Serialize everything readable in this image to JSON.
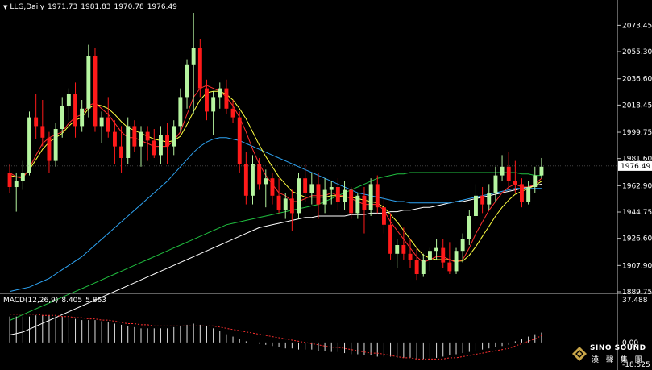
{
  "header": {
    "symbol": "LLG,Daily",
    "open": "1971.73",
    "high": "1981.83",
    "low": "1970.78",
    "close": "1976.49"
  },
  "macd_header": {
    "label": "MACD(12,26,9)",
    "main": "8.405",
    "signal": "5.863"
  },
  "colors": {
    "background": "#000000",
    "up_candle": "#b6f5a0",
    "down_candle": "#ff1a1a",
    "ma_fast": "#ff3030",
    "ma_mid": "#ffff40",
    "ma_blue": "#2ea3f2",
    "ma_green": "#20c040",
    "ma_white": "#ffffff",
    "grid": "#c0c0c0"
  },
  "logo": {
    "text": "SINO SOUND",
    "cn": "漢 聲 集 團"
  },
  "chart_data": [
    {
      "type": "candlestick",
      "title": "LLG,Daily",
      "y_ticks": [
        "2073.45",
        "2055.30",
        "2036.60",
        "2018.45",
        "1999.75",
        "1981.60",
        "1962.90",
        "1944.75",
        "1926.60",
        "1907.90",
        "1889.75"
      ],
      "ylim": [
        1889.75,
        2082
      ],
      "current_price": "1976.49",
      "candles": [
        [
          1972,
          1978,
          1958,
          1962
        ],
        [
          1962,
          1972,
          1945,
          1966
        ],
        [
          1966,
          1980,
          1960,
          1972
        ],
        [
          1972,
          2014,
          1970,
          2010
        ],
        [
          2010,
          2026,
          1995,
          2004
        ],
        [
          2004,
          2022,
          1990,
          1996
        ],
        [
          1996,
          2000,
          1972,
          1980
        ],
        [
          1980,
          2006,
          1976,
          2002
        ],
        [
          2002,
          2024,
          1996,
          2018
        ],
        [
          2018,
          2030,
          2008,
          2026
        ],
        [
          2026,
          2034,
          1996,
          2004
        ],
        [
          2004,
          2022,
          2000,
          2016
        ],
        [
          2016,
          2060,
          2010,
          2052
        ],
        [
          2052,
          2058,
          2000,
          2004
        ],
        [
          2004,
          2014,
          1992,
          2010
        ],
        [
          2010,
          2024,
          1996,
          2000
        ],
        [
          2000,
          2008,
          1978,
          1990
        ],
        [
          1990,
          2004,
          1972,
          1982
        ],
        [
          1982,
          2010,
          1978,
          2004
        ],
        [
          2004,
          2008,
          1986,
          1990
        ],
        [
          1990,
          2004,
          1976,
          2000
        ],
        [
          2000,
          2004,
          1980,
          1994
        ],
        [
          1994,
          2002,
          1982,
          1984
        ],
        [
          1984,
          2004,
          1978,
          1998
        ],
        [
          1998,
          2006,
          1978,
          1990
        ],
        [
          1990,
          2008,
          1984,
          2004
        ],
        [
          2004,
          2030,
          2000,
          2024
        ],
        [
          2024,
          2050,
          2016,
          2046
        ],
        [
          2046,
          2082,
          2012,
          2058
        ],
        [
          2058,
          2064,
          2024,
          2030
        ],
        [
          2030,
          2036,
          2008,
          2014
        ],
        [
          2014,
          2028,
          1998,
          2024
        ],
        [
          2024,
          2034,
          2016,
          2030
        ],
        [
          2030,
          2036,
          2012,
          2016
        ],
        [
          2016,
          2022,
          2006,
          2010
        ],
        [
          2010,
          2014,
          1972,
          1978
        ],
        [
          1978,
          1986,
          1950,
          1956
        ],
        [
          1956,
          1984,
          1950,
          1978
        ],
        [
          1978,
          1982,
          1960,
          1964
        ],
        [
          1964,
          1974,
          1948,
          1968
        ],
        [
          1968,
          1972,
          1950,
          1956
        ],
        [
          1956,
          1968,
          1944,
          1946
        ],
        [
          1946,
          1958,
          1940,
          1954
        ],
        [
          1954,
          1960,
          1932,
          1944
        ],
        [
          1944,
          1972,
          1940,
          1968
        ],
        [
          1968,
          1978,
          1952,
          1958
        ],
        [
          1958,
          1972,
          1950,
          1964
        ],
        [
          1964,
          1972,
          1940,
          1950
        ],
        [
          1950,
          1968,
          1944,
          1960
        ],
        [
          1960,
          1966,
          1950,
          1962
        ],
        [
          1962,
          1968,
          1946,
          1952
        ],
        [
          1952,
          1966,
          1946,
          1960
        ],
        [
          1960,
          1962,
          1940,
          1944
        ],
        [
          1944,
          1958,
          1940,
          1956
        ],
        [
          1956,
          1962,
          1930,
          1946
        ],
        [
          1946,
          1968,
          1942,
          1964
        ],
        [
          1964,
          1970,
          1944,
          1948
        ],
        [
          1948,
          1956,
          1930,
          1936
        ],
        [
          1936,
          1944,
          1912,
          1916
        ],
        [
          1916,
          1926,
          1906,
          1922
        ],
        [
          1922,
          1934,
          1912,
          1916
        ],
        [
          1916,
          1926,
          1906,
          1912
        ],
        [
          1912,
          1920,
          1898,
          1902
        ],
        [
          1902,
          1916,
          1900,
          1912
        ],
        [
          1912,
          1920,
          1904,
          1918
        ],
        [
          1918,
          1926,
          1912,
          1920
        ],
        [
          1920,
          1926,
          1906,
          1910
        ],
        [
          1910,
          1924,
          1902,
          1904
        ],
        [
          1904,
          1920,
          1902,
          1918
        ],
        [
          1918,
          1930,
          1910,
          1926
        ],
        [
          1926,
          1946,
          1922,
          1942
        ],
        [
          1942,
          1964,
          1940,
          1956
        ],
        [
          1956,
          1962,
          1944,
          1950
        ],
        [
          1950,
          1964,
          1946,
          1958
        ],
        [
          1958,
          1976,
          1952,
          1970
        ],
        [
          1970,
          1984,
          1966,
          1976
        ],
        [
          1976,
          1986,
          1960,
          1966
        ],
        [
          1966,
          1980,
          1958,
          1964
        ],
        [
          1964,
          1968,
          1948,
          1952
        ],
        [
          1952,
          1966,
          1950,
          1962
        ],
        [
          1962,
          1976,
          1958,
          1970
        ],
        [
          1970,
          1982,
          1968,
          1976
        ]
      ],
      "ma_fast": [
        1972,
        1969,
        1968,
        1975,
        1984,
        1992,
        1996,
        1998,
        2000,
        2006,
        2010,
        2012,
        2018,
        2020,
        2016,
        2012,
        2006,
        2000,
        1996,
        1996,
        1994,
        1992,
        1990,
        1990,
        1990,
        1994,
        2000,
        2012,
        2024,
        2030,
        2032,
        2030,
        2028,
        2024,
        2018,
        2010,
        2000,
        1988,
        1978,
        1970,
        1964,
        1958,
        1956,
        1952,
        1952,
        1954,
        1956,
        1956,
        1956,
        1958,
        1956,
        1956,
        1954,
        1952,
        1950,
        1950,
        1950,
        1946,
        1938,
        1932,
        1926,
        1920,
        1914,
        1910,
        1912,
        1914,
        1914,
        1912,
        1910,
        1912,
        1920,
        1930,
        1938,
        1946,
        1952,
        1958,
        1962,
        1964,
        1962,
        1962,
        1964,
        1968
      ],
      "ma_mid": [
        1970,
        1969,
        1969,
        1974,
        1981,
        1988,
        1993,
        1996,
        1999,
        2004,
        2008,
        2010,
        2016,
        2019,
        2018,
        2016,
        2012,
        2007,
        2003,
        2001,
        1999,
        1997,
        1995,
        1994,
        1993,
        1994,
        1997,
        2005,
        2014,
        2022,
        2027,
        2028,
        2028,
        2026,
        2022,
        2016,
        2009,
        2000,
        1991,
        1983,
        1976,
        1969,
        1964,
        1959,
        1957,
        1955,
        1955,
        1955,
        1955,
        1956,
        1956,
        1955,
        1955,
        1954,
        1953,
        1952,
        1951,
        1948,
        1943,
        1938,
        1932,
        1926,
        1920,
        1915,
        1913,
        1912,
        1912,
        1912,
        1911,
        1911,
        1915,
        1921,
        1928,
        1935,
        1942,
        1948,
        1953,
        1957,
        1959,
        1961,
        1963,
        1966
      ],
      "ma_blue": [
        1890,
        1891,
        1892,
        1893,
        1895,
        1897,
        1899,
        1902,
        1905,
        1908,
        1911,
        1914,
        1918,
        1922,
        1926,
        1930,
        1934,
        1938,
        1942,
        1946,
        1950,
        1954,
        1958,
        1962,
        1966,
        1971,
        1976,
        1981,
        1986,
        1990,
        1993,
        1995,
        1996,
        1996,
        1995,
        1994,
        1992,
        1990,
        1988,
        1986,
        1984,
        1982,
        1980,
        1978,
        1976,
        1974,
        1972,
        1970,
        1968,
        1966,
        1964,
        1962,
        1960,
        1958,
        1957,
        1956,
        1955,
        1954,
        1953,
        1952,
        1952,
        1951,
        1951,
        1951,
        1951,
        1951,
        1951,
        1951,
        1952,
        1953,
        1954,
        1955,
        1956,
        1957,
        1958,
        1959,
        1960,
        1961,
        1961,
        1961,
        1961,
        1961
      ],
      "ma_green": [
        1870,
        1872,
        1874,
        1876,
        1878,
        1880,
        1882,
        1884,
        1886,
        1888,
        1890,
        1892,
        1894,
        1896,
        1898,
        1900,
        1902,
        1904,
        1906,
        1908,
        1910,
        1912,
        1914,
        1916,
        1918,
        1920,
        1922,
        1924,
        1926,
        1928,
        1930,
        1932,
        1934,
        1936,
        1937,
        1938,
        1939,
        1940,
        1941,
        1942,
        1943,
        1944,
        1945,
        1946,
        1947,
        1948,
        1949,
        1950,
        1952,
        1954,
        1956,
        1958,
        1960,
        1962,
        1964,
        1966,
        1968,
        1969,
        1970,
        1971,
        1971,
        1972,
        1972,
        1972,
        1972,
        1972,
        1972,
        1972,
        1972,
        1972,
        1972,
        1972,
        1972,
        1972,
        1972,
        1972,
        1972,
        1972,
        1971,
        1971,
        1970,
        1970
      ],
      "ma_white": [
        1860,
        1861,
        1862,
        1864,
        1866,
        1868,
        1870,
        1872,
        1874,
        1876,
        1878,
        1880,
        1882,
        1884,
        1886,
        1888,
        1890,
        1892,
        1894,
        1896,
        1898,
        1900,
        1902,
        1904,
        1906,
        1908,
        1910,
        1912,
        1914,
        1916,
        1918,
        1920,
        1922,
        1924,
        1926,
        1928,
        1930,
        1932,
        1934,
        1935,
        1936,
        1937,
        1938,
        1939,
        1940,
        1941,
        1941,
        1942,
        1942,
        1942,
        1942,
        1942,
        1943,
        1943,
        1943,
        1944,
        1944,
        1944,
        1945,
        1945,
        1946,
        1946,
        1947,
        1948,
        1948,
        1949,
        1950,
        1951,
        1952,
        1952,
        1953,
        1954,
        1955,
        1956,
        1957,
        1958,
        1959,
        1960,
        1961,
        1962,
        1963,
        1964
      ]
    },
    {
      "type": "bar",
      "title": "MACD(12,26,9)",
      "y_ticks": [
        "37.488",
        "0.00",
        "-18.525"
      ],
      "ylim": [
        -18.525,
        37.488
      ],
      "histogram": [
        22,
        22,
        22,
        22,
        23,
        23,
        23,
        22,
        22,
        21,
        20,
        19,
        19,
        19,
        18,
        17,
        16,
        15,
        14,
        13,
        12,
        12,
        12,
        12,
        12,
        13,
        14,
        15,
        16,
        15,
        14,
        12,
        10,
        7,
        5,
        3,
        1,
        0,
        -1,
        -2,
        -3,
        -4,
        -5,
        -5,
        -6,
        -6,
        -6,
        -7,
        -7,
        -8,
        -8,
        -9,
        -10,
        -10,
        -11,
        -11,
        -12,
        -12,
        -12,
        -13,
        -13,
        -13,
        -14,
        -14,
        -14,
        -13,
        -12,
        -11,
        -10,
        -9,
        -8,
        -7,
        -6,
        -5,
        -4,
        -3,
        -2,
        1,
        3,
        5,
        7,
        8.4
      ],
      "signal": [
        24,
        24,
        24,
        24,
        24,
        23,
        23,
        23,
        22,
        22,
        21,
        21,
        20,
        20,
        19,
        19,
        18,
        17,
        16,
        16,
        15,
        15,
        14,
        14,
        14,
        14,
        14,
        14,
        14,
        14,
        14,
        14,
        13,
        12,
        11,
        10,
        9,
        8,
        7,
        6,
        5,
        4,
        3,
        2,
        1,
        0,
        -1,
        -2,
        -3,
        -4,
        -4,
        -5,
        -6,
        -7,
        -8,
        -9,
        -9,
        -10,
        -11,
        -12,
        -13,
        -13,
        -14,
        -14,
        -14,
        -14,
        -14,
        -13,
        -13,
        -12,
        -11,
        -10,
        -9,
        -8,
        -7,
        -6,
        -5,
        -3,
        -1,
        1,
        3,
        5.863
      ]
    }
  ]
}
